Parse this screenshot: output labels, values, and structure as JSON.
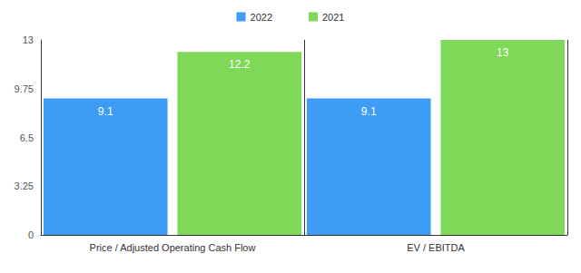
{
  "chart_data": {
    "type": "bar",
    "categories": [
      "Price / Adjusted Operating Cash Flow",
      "EV / EBITDA"
    ],
    "series": [
      {
        "name": "2022",
        "color": "#3d9cf5",
        "values": [
          9.1,
          9.1
        ]
      },
      {
        "name": "2021",
        "color": "#7fd858",
        "values": [
          12.2,
          13
        ]
      }
    ],
    "ylim": [
      0,
      13
    ],
    "yticks": [
      0,
      3.25,
      6.5,
      9.75,
      13
    ],
    "grid": false,
    "legend": "top",
    "data_labels": true
  }
}
